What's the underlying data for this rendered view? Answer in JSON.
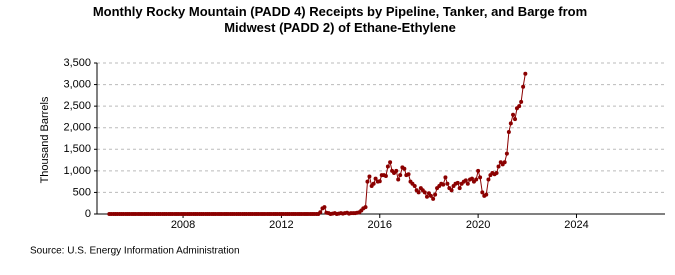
{
  "chart_data": {
    "type": "line",
    "title": "Monthly Rocky Mountain (PADD 4) Receipts by Pipeline, Tanker, and Barge from Midwest (PADD 2) of Ethane-Ethylene",
    "y_label": "Thousand Barrels",
    "source": "Source: U.S. Energy Information Administration",
    "xlim": [
      2004.5,
      2027.6
    ],
    "xticks": [
      2008,
      2012,
      2016,
      2020,
      2024
    ],
    "ylim": [
      0,
      3500
    ],
    "yticks": [
      0,
      500,
      {
        "value": 1000,
        "label": "1,000"
      },
      {
        "value": 1500,
        "label": "1,500"
      },
      {
        "value": 2000,
        "label": "2,000"
      },
      {
        "value": 2500,
        "label": "2,500"
      },
      {
        "value": 3000,
        "label": "3,000"
      },
      {
        "value": 3500,
        "label": "3,500"
      }
    ],
    "grid": true,
    "series": [
      {
        "color": "#8b0000",
        "x": [
          2005,
          2005.08,
          2005.17,
          2005.25,
          2005.33,
          2005.42,
          2005.5,
          2005.58,
          2005.67,
          2005.75,
          2005.83,
          2005.92,
          2006,
          2006.08,
          2006.17,
          2006.25,
          2006.33,
          2006.42,
          2006.5,
          2006.58,
          2006.67,
          2006.75,
          2006.83,
          2006.92,
          2007,
          2007.08,
          2007.17,
          2007.25,
          2007.33,
          2007.42,
          2007.5,
          2007.58,
          2007.67,
          2007.75,
          2007.83,
          2007.92,
          2008,
          2008.08,
          2008.17,
          2008.25,
          2008.33,
          2008.42,
          2008.5,
          2008.58,
          2008.67,
          2008.75,
          2008.83,
          2008.92,
          2009,
          2009.08,
          2009.17,
          2009.25,
          2009.33,
          2009.42,
          2009.5,
          2009.58,
          2009.67,
          2009.75,
          2009.83,
          2009.92,
          2010,
          2010.08,
          2010.17,
          2010.25,
          2010.33,
          2010.42,
          2010.5,
          2010.58,
          2010.67,
          2010.75,
          2010.83,
          2010.92,
          2011,
          2011.08,
          2011.17,
          2011.25,
          2011.33,
          2011.42,
          2011.5,
          2011.58,
          2011.67,
          2011.75,
          2011.83,
          2011.92,
          2012,
          2012.08,
          2012.17,
          2012.25,
          2012.33,
          2012.42,
          2012.5,
          2012.58,
          2012.67,
          2012.75,
          2012.83,
          2012.92,
          2013,
          2013.08,
          2013.17,
          2013.25,
          2013.33,
          2013.42,
          2013.5,
          2013.58,
          2013.67,
          2013.75,
          2013.83,
          2013.92,
          2014,
          2014.08,
          2014.17,
          2014.25,
          2014.33,
          2014.42,
          2014.5,
          2014.58,
          2014.67,
          2014.75,
          2014.83,
          2014.92,
          2015,
          2015.08,
          2015.17,
          2015.25,
          2015.33,
          2015.42,
          2015.5,
          2015.58,
          2015.67,
          2015.75,
          2015.83,
          2015.92,
          2016,
          2016.08,
          2016.17,
          2016.25,
          2016.33,
          2016.42,
          2016.5,
          2016.58,
          2016.67,
          2016.75,
          2016.83,
          2016.92,
          2017,
          2017.08,
          2017.17,
          2017.25,
          2017.33,
          2017.42,
          2017.5,
          2017.58,
          2017.67,
          2017.75,
          2017.83,
          2017.92,
          2018,
          2018.08,
          2018.17,
          2018.25,
          2018.33,
          2018.42,
          2018.5,
          2018.58,
          2018.67,
          2018.75,
          2018.83,
          2018.92,
          2019,
          2019.08,
          2019.17,
          2019.25,
          2019.33,
          2019.42,
          2019.5,
          2019.58,
          2019.67,
          2019.75,
          2019.83,
          2019.92,
          2020,
          2020.08,
          2020.17,
          2020.25,
          2020.33,
          2020.42,
          2020.5,
          2020.58,
          2020.67,
          2020.75,
          2020.83,
          2020.92,
          2021,
          2021.08,
          2021.17,
          2021.25,
          2021.33,
          2021.42,
          2021.5,
          2021.58,
          2021.67,
          2021.75,
          2021.83,
          2021.92
        ],
        "values": [
          0,
          0,
          0,
          0,
          0,
          0,
          0,
          0,
          0,
          0,
          0,
          0,
          0,
          0,
          0,
          0,
          0,
          0,
          0,
          0,
          0,
          0,
          0,
          0,
          0,
          0,
          0,
          0,
          0,
          0,
          0,
          0,
          0,
          0,
          0,
          0,
          0,
          0,
          0,
          0,
          0,
          0,
          0,
          0,
          0,
          0,
          0,
          0,
          0,
          0,
          0,
          0,
          0,
          0,
          0,
          0,
          0,
          0,
          0,
          0,
          0,
          0,
          0,
          0,
          0,
          0,
          0,
          0,
          0,
          0,
          0,
          0,
          0,
          0,
          0,
          0,
          0,
          0,
          0,
          0,
          0,
          0,
          0,
          0,
          0,
          0,
          0,
          0,
          0,
          0,
          0,
          0,
          0,
          0,
          0,
          0,
          0,
          0,
          0,
          0,
          0,
          0,
          0,
          40,
          130,
          160,
          30,
          20,
          0,
          10,
          20,
          0,
          10,
          20,
          10,
          20,
          30,
          10,
          20,
          20,
          20,
          30,
          40,
          80,
          130,
          160,
          750,
          870,
          650,
          700,
          820,
          750,
          760,
          900,
          900,
          880,
          1100,
          1200,
          1000,
          950,
          1000,
          800,
          900,
          1080,
          1050,
          900,
          920,
          750,
          700,
          650,
          550,
          500,
          600,
          550,
          500,
          400,
          480,
          420,
          350,
          450,
          600,
          650,
          700,
          680,
          850,
          700,
          600,
          550,
          650,
          700,
          720,
          600,
          700,
          750,
          780,
          700,
          800,
          820,
          750,
          800,
          1000,
          850,
          500,
          420,
          450,
          800,
          900,
          950,
          920,
          950,
          1100,
          1200,
          1150,
          1200,
          1400,
          1900,
          2100,
          2300,
          2200,
          2450,
          2500,
          2600,
          2950,
          3250
        ]
      }
    ]
  }
}
